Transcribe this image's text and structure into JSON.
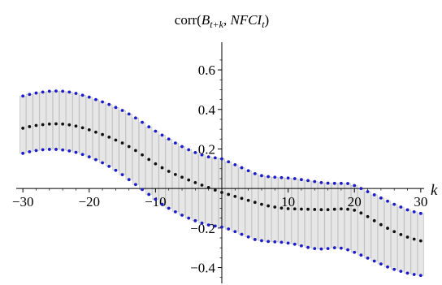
{
  "chart_data": {
    "type": "scatter",
    "title_parts": [
      "corr(",
      "B",
      "t+k",
      ", ",
      "NFCI",
      "t",
      ")"
    ],
    "xlabel": "k",
    "ylabel": "",
    "xlim": [
      -31,
      31
    ],
    "ylim": [
      -0.48,
      0.74
    ],
    "x_ticks": [
      -30,
      -20,
      -10,
      10,
      20,
      30
    ],
    "x_tick_labels": [
      "−30",
      "−20",
      "−10",
      "10",
      "20",
      "30"
    ],
    "y_ticks": [
      0.6,
      0.4,
      0.2,
      -0.2,
      -0.4
    ],
    "y_tick_labels": [
      "0.6",
      "0.4",
      "0.2",
      "−0.2",
      "−0.4"
    ],
    "legend": "none",
    "grid": false,
    "colors": {
      "point": "#111111",
      "band": "#1c1cc8",
      "bar_fill": "#e6e6e6",
      "bar_edge": "#bdbdbd"
    },
    "x": [
      -30,
      -29,
      -28,
      -27,
      -26,
      -25,
      -24,
      -23,
      -22,
      -21,
      -20,
      -19,
      -18,
      -17,
      -16,
      -15,
      -14,
      -13,
      -12,
      -11,
      -10,
      -9,
      -8,
      -7,
      -6,
      -5,
      -4,
      -3,
      -2,
      -1,
      0,
      1,
      2,
      3,
      4,
      5,
      6,
      7,
      8,
      9,
      10,
      11,
      12,
      13,
      14,
      15,
      16,
      17,
      18,
      19,
      20,
      21,
      22,
      23,
      24,
      25,
      26,
      27,
      28,
      29,
      30
    ],
    "series": [
      {
        "role": "estimate",
        "values": [
          0.305,
          0.313,
          0.319,
          0.323,
          0.326,
          0.327,
          0.326,
          0.322,
          0.316,
          0.307,
          0.297,
          0.285,
          0.273,
          0.26,
          0.245,
          0.23,
          0.212,
          0.192,
          0.17,
          0.147,
          0.125,
          0.105,
          0.087,
          0.071,
          0.057,
          0.043,
          0.03,
          0.017,
          0.005,
          -0.008,
          -0.02,
          -0.03,
          -0.04,
          -0.05,
          -0.06,
          -0.07,
          -0.08,
          -0.088,
          -0.094,
          -0.099,
          -0.102,
          -0.103,
          -0.104,
          -0.105,
          -0.106,
          -0.107,
          -0.107,
          -0.105,
          -0.103,
          -0.105,
          -0.11,
          -0.124,
          -0.142,
          -0.163,
          -0.183,
          -0.201,
          -0.218,
          -0.233,
          -0.246,
          -0.256,
          -0.265
        ]
      },
      {
        "role": "upper",
        "values": [
          0.468,
          0.476,
          0.483,
          0.488,
          0.492,
          0.493,
          0.492,
          0.488,
          0.481,
          0.472,
          0.462,
          0.45,
          0.438,
          0.425,
          0.41,
          0.395,
          0.377,
          0.357,
          0.335,
          0.312,
          0.29,
          0.27,
          0.25,
          0.23,
          0.212,
          0.196,
          0.182,
          0.17,
          0.16,
          0.155,
          0.15,
          0.135,
          0.12,
          0.105,
          0.09,
          0.075,
          0.065,
          0.06,
          0.057,
          0.055,
          0.053,
          0.05,
          0.045,
          0.04,
          0.035,
          0.03,
          0.027,
          0.026,
          0.026,
          0.025,
          0.015,
          0.0,
          -0.016,
          -0.032,
          -0.048,
          -0.064,
          -0.08,
          -0.094,
          -0.108,
          -0.118,
          -0.126
        ]
      },
      {
        "role": "lower",
        "values": [
          0.178,
          0.186,
          0.192,
          0.196,
          0.198,
          0.198,
          0.195,
          0.19,
          0.183,
          0.172,
          0.16,
          0.146,
          0.13,
          0.112,
          0.092,
          0.07,
          0.045,
          0.02,
          -0.005,
          -0.03,
          -0.055,
          -0.08,
          -0.1,
          -0.118,
          -0.135,
          -0.15,
          -0.163,
          -0.175,
          -0.185,
          -0.19,
          -0.195,
          -0.205,
          -0.218,
          -0.232,
          -0.245,
          -0.258,
          -0.264,
          -0.268,
          -0.27,
          -0.272,
          -0.276,
          -0.282,
          -0.29,
          -0.298,
          -0.304,
          -0.306,
          -0.304,
          -0.3,
          -0.302,
          -0.31,
          -0.323,
          -0.337,
          -0.352,
          -0.367,
          -0.382,
          -0.397,
          -0.409,
          -0.419,
          -0.428,
          -0.435,
          -0.44
        ]
      }
    ]
  }
}
